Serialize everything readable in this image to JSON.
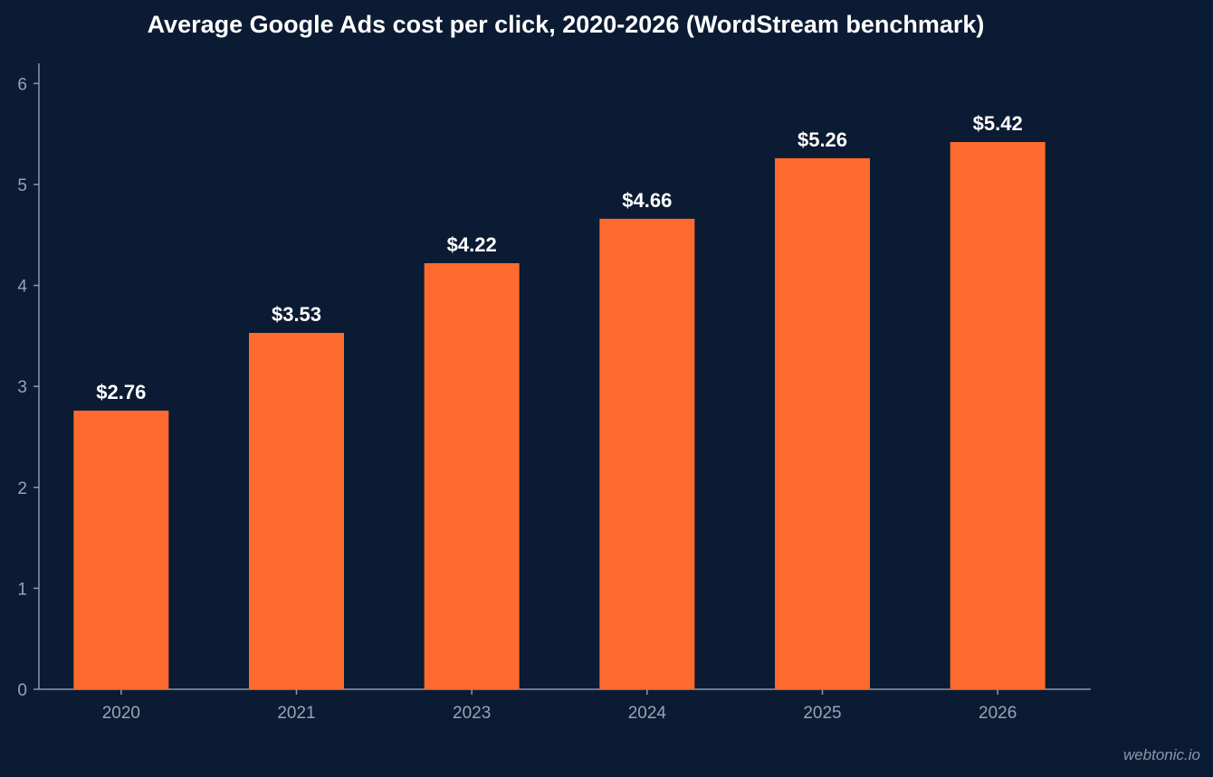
{
  "chart_data": {
    "type": "bar",
    "title": "Average Google Ads cost per click, 2020-2026 (WordStream benchmark)",
    "xlabel": "",
    "ylabel": "",
    "categories": [
      "2020",
      "2021",
      "2023",
      "2024",
      "2025",
      "2026"
    ],
    "values": [
      2.76,
      3.53,
      4.22,
      4.66,
      5.26,
      5.42
    ],
    "data_labels": [
      "$2.76",
      "$3.53",
      "$4.22",
      "$4.66",
      "$5.26",
      "$5.42"
    ],
    "ylim": [
      0,
      6.2
    ],
    "yticks": [
      "0",
      "1",
      "2",
      "3",
      "4",
      "5",
      "6"
    ],
    "grid": false,
    "bar_color": "#ff6b2e",
    "background_color": "#0b1b33",
    "axis_color": "#8b97a8"
  },
  "watermark": "webtonic.io"
}
